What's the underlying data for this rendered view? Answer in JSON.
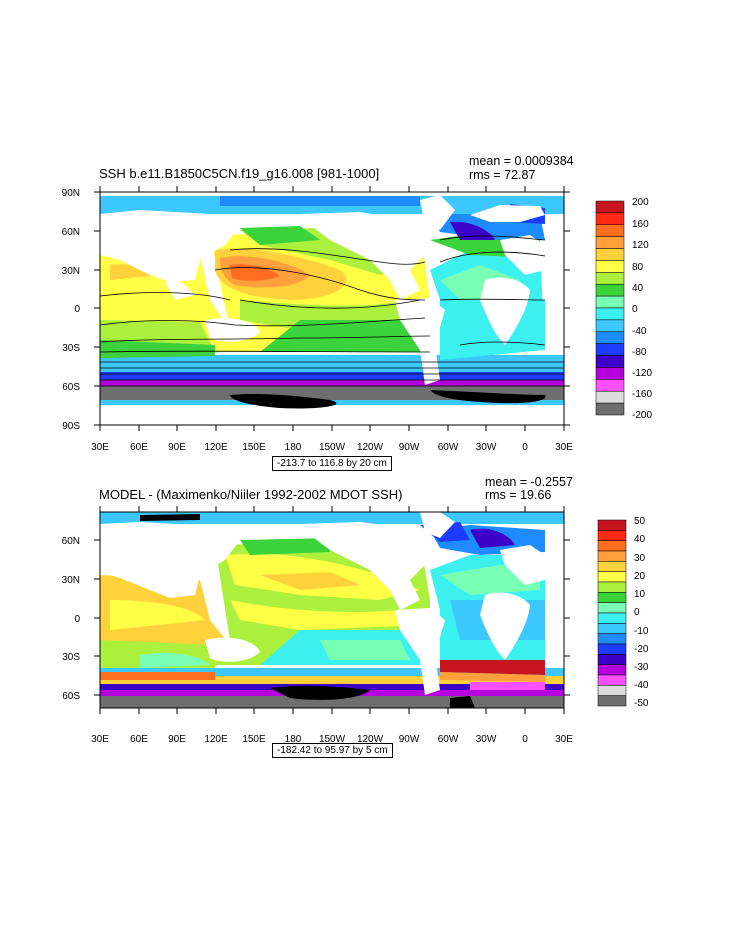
{
  "panels": [
    {
      "title": "SSH b.e11.B1850C5CN.f19_g16.008 [981-1000]",
      "mean": "mean = 0.0009384",
      "rms": "rms = 72.87",
      "range": "-213.7 to 116.8 by 20 cm",
      "lat_labels": [
        "90N",
        "60N",
        "30N",
        "0",
        "30S",
        "60S",
        "90S"
      ],
      "lon_labels": [
        "30E",
        "60E",
        "90E",
        "120E",
        "150E",
        "180",
        "150W",
        "120W",
        "90W",
        "60W",
        "30W",
        "0",
        "30E"
      ],
      "colorbar": {
        "labels": [
          "200",
          "160",
          "120",
          "80",
          "40",
          "0",
          "-40",
          "-80",
          "-120",
          "-160",
          "-200"
        ],
        "colors": [
          "#c8141e",
          "#ff2a14",
          "#ff6e1e",
          "#ffa03c",
          "#ffd23c",
          "#ffff46",
          "#aaf03c",
          "#3cd23c",
          "#78ffb4",
          "#3cf0f0",
          "#3cc8ff",
          "#1e8cff",
          "#1e3cff",
          "#3c00c8",
          "#b400dc",
          "#ff50ff",
          "#dcdcdc",
          "#6e6e6e"
        ]
      }
    },
    {
      "title": "MODEL - (Maximenko/Niiler 1992-2002 MDOT SSH)",
      "mean": "mean = -0.2557",
      "rms": "rms = 19.66",
      "range": "-182.42 to 95.97 by 5 cm",
      "lat_labels": [
        "60N",
        "30N",
        "0",
        "30S",
        "60S"
      ],
      "lon_labels": [
        "30E",
        "60E",
        "90E",
        "120E",
        "150E",
        "180",
        "150W",
        "120W",
        "90W",
        "60W",
        "30W",
        "0",
        "30E"
      ],
      "colorbar": {
        "labels": [
          "50",
          "40",
          "30",
          "20",
          "10",
          "0",
          "-10",
          "-20",
          "-30",
          "-40",
          "-50"
        ],
        "colors": [
          "#c8141e",
          "#ff2a14",
          "#ff6e1e",
          "#ffa03c",
          "#ffd23c",
          "#ffff46",
          "#aaf03c",
          "#3cd23c",
          "#78ffb4",
          "#3cf0f0",
          "#3cc8ff",
          "#1e8cff",
          "#1e3cff",
          "#3c00c8",
          "#b400dc",
          "#ff50ff",
          "#dcdcdc",
          "#6e6e6e"
        ]
      }
    }
  ]
}
